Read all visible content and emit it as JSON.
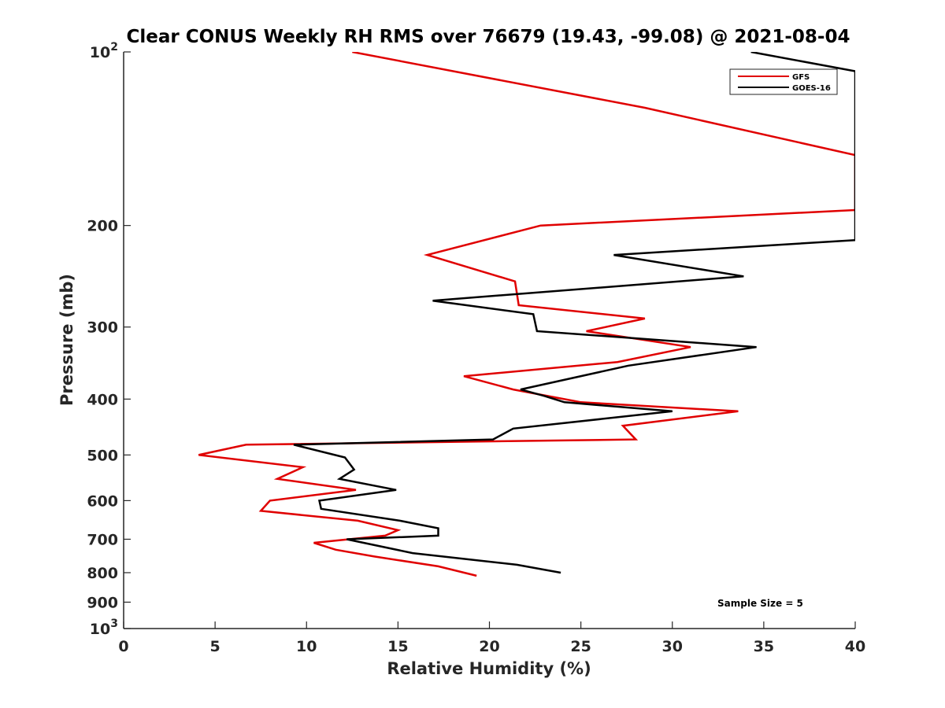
{
  "chart_data": {
    "type": "line",
    "title": "Clear CONUS Weekly RH RMS over 76679 (19.43, -99.08) @ 2021-08-04",
    "xlabel": "Relative Humidity (%)",
    "ylabel": "Pressure (mb)",
    "xlim": [
      0,
      40
    ],
    "ylim": [
      100,
      1000
    ],
    "yscale": "log",
    "y_reversed": true,
    "grid": false,
    "legend_position": "top-right",
    "x_ticks": [
      0,
      5,
      10,
      15,
      20,
      25,
      30,
      35,
      40
    ],
    "y_ticks": [
      {
        "value": 100,
        "base": "10",
        "exp": "2"
      },
      {
        "value": 200,
        "label": "200"
      },
      {
        "value": 300,
        "label": "300"
      },
      {
        "value": 400,
        "label": "400"
      },
      {
        "value": 500,
        "label": "500"
      },
      {
        "value": 600,
        "label": "600"
      },
      {
        "value": 700,
        "label": "700"
      },
      {
        "value": 800,
        "label": "800"
      },
      {
        "value": 900,
        "label": "900"
      },
      {
        "value": 1000,
        "base": "10",
        "exp": "3"
      }
    ],
    "annotation": "Sample Size = 5",
    "series": [
      {
        "name": "GFS",
        "color": "#e00000",
        "points": [
          [
            12.5,
            100
          ],
          [
            28.5,
            125
          ],
          [
            40,
            151
          ],
          [
            40,
            188
          ],
          [
            22.8,
            200
          ],
          [
            16.6,
            225
          ],
          [
            21.4,
            250
          ],
          [
            21.6,
            275
          ],
          [
            28.5,
            290
          ],
          [
            25.3,
            305
          ],
          [
            31.0,
            325
          ],
          [
            27.0,
            345
          ],
          [
            18.6,
            365
          ],
          [
            21.3,
            385
          ],
          [
            25.0,
            405
          ],
          [
            33.6,
            420
          ],
          [
            27.3,
            445
          ],
          [
            28.0,
            470
          ],
          [
            6.7,
            480
          ],
          [
            4.1,
            500
          ],
          [
            9.8,
            525
          ],
          [
            8.4,
            550
          ],
          [
            12.7,
            575
          ],
          [
            8.0,
            600
          ],
          [
            7.5,
            625
          ],
          [
            12.8,
            650
          ],
          [
            15.0,
            675
          ],
          [
            14.3,
            690
          ],
          [
            10.4,
            710
          ],
          [
            11.6,
            730
          ],
          [
            13.7,
            750
          ],
          [
            17.2,
            780
          ],
          [
            19.3,
            810
          ]
        ]
      },
      {
        "name": "GOES-16",
        "color": "#000000",
        "points": [
          [
            34.3,
            100
          ],
          [
            40,
            108
          ],
          [
            40,
            212
          ],
          [
            26.8,
            225
          ],
          [
            33.9,
            245
          ],
          [
            16.9,
            270
          ],
          [
            22.4,
            285
          ],
          [
            22.6,
            305
          ],
          [
            34.6,
            325
          ],
          [
            27.6,
            350
          ],
          [
            21.7,
            385
          ],
          [
            23.0,
            395
          ],
          [
            24.1,
            405
          ],
          [
            30.0,
            420
          ],
          [
            21.3,
            450
          ],
          [
            20.2,
            470
          ],
          [
            9.3,
            480
          ],
          [
            12.1,
            505
          ],
          [
            12.6,
            530
          ],
          [
            11.8,
            550
          ],
          [
            14.9,
            575
          ],
          [
            10.7,
            600
          ],
          [
            10.8,
            620
          ],
          [
            15.1,
            650
          ],
          [
            17.2,
            670
          ],
          [
            17.2,
            690
          ],
          [
            12.2,
            700
          ],
          [
            15.8,
            740
          ],
          [
            21.5,
            775
          ],
          [
            23.9,
            800
          ]
        ]
      }
    ]
  }
}
